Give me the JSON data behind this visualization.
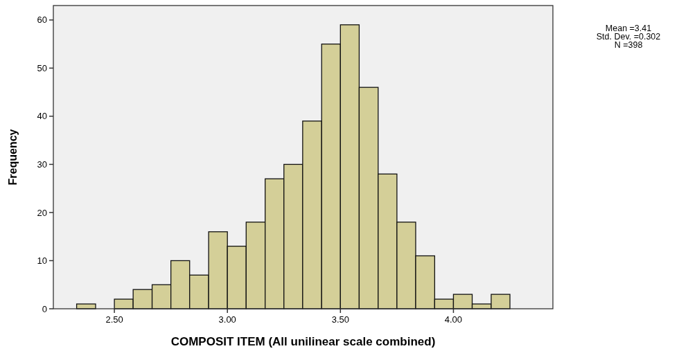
{
  "chart_data": {
    "type": "histogram",
    "xlabel": "COMPOSIT ITEM (All unilinear scale combined)",
    "ylabel": "Frequency",
    "bins": [
      2.333,
      2.417,
      2.5,
      2.583,
      2.667,
      2.75,
      2.833,
      2.917,
      3,
      3.083,
      3.167,
      3.25,
      3.333,
      3.417,
      3.5,
      3.583,
      3.667,
      3.75,
      3.833,
      3.917,
      4,
      4.083,
      4.167,
      4.25
    ],
    "values": [
      1,
      0,
      2,
      4,
      5,
      10,
      7,
      16,
      13,
      18,
      27,
      30,
      39,
      55,
      59,
      46,
      28,
      18,
      11,
      2,
      3,
      1,
      3
    ],
    "color": "#d4cf98",
    "xlim": [
      2.23,
      4.44
    ],
    "xticks": [
      {
        "value": 2.5,
        "label": "2.50"
      },
      {
        "value": 3,
        "label": "3.00"
      },
      {
        "value": 3.5,
        "label": "3.50"
      },
      {
        "value": 4,
        "label": "4.00"
      }
    ],
    "ylim": [
      0,
      63
    ],
    "yticks": [
      0,
      10,
      20,
      30,
      40,
      50,
      60
    ],
    "annotations": [
      "Mean =3.41",
      "Std. Dev. =0.302",
      "N =398"
    ]
  }
}
